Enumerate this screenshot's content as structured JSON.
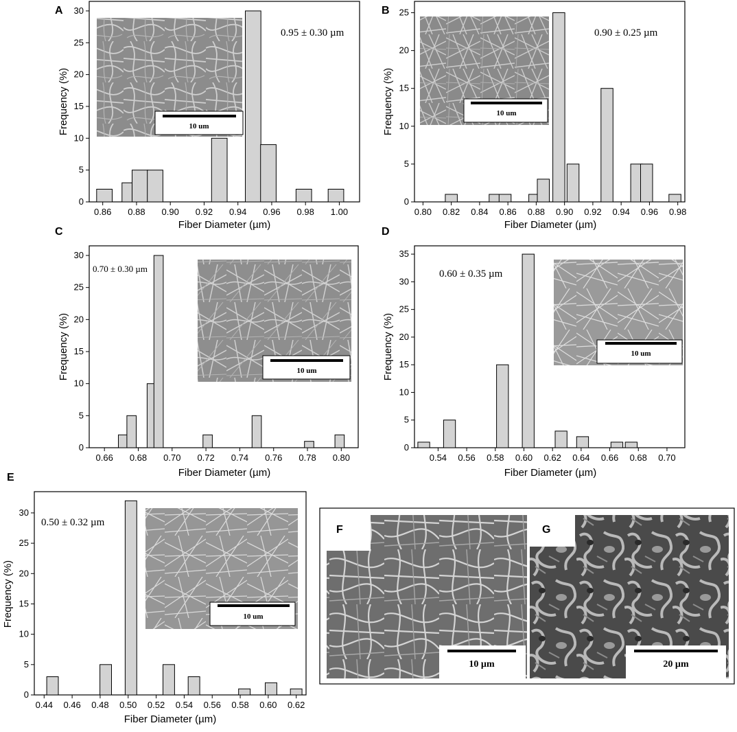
{
  "figure": {
    "panels_extra": {
      "F": {
        "label": "F",
        "scale": "10 µm"
      },
      "G": {
        "label": "G",
        "scale": "20 µm"
      }
    }
  },
  "chart_data": [
    {
      "id": "A",
      "panel_label": "A",
      "type": "bar",
      "xlabel": "Fiber Diameter (µm)",
      "ylabel": "Frequency (%)",
      "annotation": "0.95 ± 0.30 µm",
      "inset_scale": "10 um",
      "x_ticks": [
        0.86,
        0.88,
        0.9,
        0.92,
        0.94,
        0.96,
        0.98,
        1.0
      ],
      "x_tick_labels": [
        "0.86",
        "0.88",
        "0.90",
        "0.92",
        "0.94",
        "0.96",
        "0.98",
        "1.00"
      ],
      "y_ticks": [
        0,
        5,
        10,
        15,
        20,
        25,
        30
      ],
      "xlim": [
        0.852,
        1.012
      ],
      "ylim": [
        0,
        31.5
      ],
      "bin_width": 0.0092,
      "x": [
        0.861,
        0.876,
        0.882,
        0.891,
        0.929,
        0.949,
        0.958,
        0.979,
        0.998
      ],
      "values": [
        2,
        3,
        5,
        5,
        10,
        30,
        9,
        2,
        2
      ],
      "bar_color": "#d3d3d3"
    },
    {
      "id": "B",
      "panel_label": "B",
      "type": "bar",
      "xlabel": "Fiber Diameter (µm)",
      "ylabel": "Frequency (%)",
      "annotation": "0.90 ± 0.25 µm",
      "inset_scale": "10 um",
      "x_ticks": [
        0.8,
        0.82,
        0.84,
        0.86,
        0.88,
        0.9,
        0.92,
        0.94,
        0.96,
        0.98
      ],
      "x_tick_labels": [
        "0.80",
        "0.82",
        "0.84",
        "0.86",
        "0.88",
        "0.90",
        "0.92",
        "0.94",
        "0.96",
        "0.98"
      ],
      "y_ticks": [
        0,
        5,
        10,
        15,
        20,
        25
      ],
      "xlim": [
        0.794,
        0.985
      ],
      "ylim": [
        0,
        26.5
      ],
      "bin_width": 0.0085,
      "x": [
        0.82,
        0.851,
        0.858,
        0.879,
        0.885,
        0.896,
        0.906,
        0.93,
        0.951,
        0.958,
        0.978
      ],
      "values": [
        1,
        1,
        1,
        1,
        3,
        25,
        5,
        15,
        5,
        5,
        1
      ],
      "bar_color": "#d3d3d3"
    },
    {
      "id": "C",
      "panel_label": "C",
      "type": "bar",
      "xlabel": "Fiber Diameter (µm)",
      "ylabel": "Frequency (%)",
      "annotation": "0.70 ± 0.30 µm",
      "inset_scale": "10 um",
      "x_ticks": [
        0.66,
        0.68,
        0.7,
        0.72,
        0.74,
        0.76,
        0.78,
        0.8
      ],
      "x_tick_labels": [
        "0.66",
        "0.68",
        "0.70",
        "0.72",
        "0.74",
        "0.76",
        "0.78",
        "0.80"
      ],
      "y_ticks": [
        0,
        5,
        10,
        15,
        20,
        25,
        30
      ],
      "xlim": [
        0.651,
        0.81
      ],
      "ylim": [
        0,
        31.5
      ],
      "bin_width": 0.0055,
      "x": [
        0.671,
        0.676,
        0.688,
        0.692,
        0.721,
        0.75,
        0.781,
        0.799
      ],
      "values": [
        2,
        5,
        10,
        30,
        2,
        5,
        1,
        2
      ],
      "bar_color": "#d3d3d3"
    },
    {
      "id": "D",
      "panel_label": "D",
      "type": "bar",
      "xlabel": "Fiber Diameter (µm)",
      "ylabel": "Frequency (%)",
      "annotation": "0.60 ± 0.35 µm",
      "inset_scale": "10 um",
      "x_ticks": [
        0.54,
        0.56,
        0.58,
        0.6,
        0.62,
        0.64,
        0.66,
        0.68,
        0.7
      ],
      "x_tick_labels": [
        "0.54",
        "0.56",
        "0.58",
        "0.60",
        "0.62",
        "0.64",
        "0.66",
        "0.68",
        "0.70"
      ],
      "y_ticks": [
        0,
        5,
        10,
        15,
        20,
        25,
        30,
        35
      ],
      "xlim": [
        0.5235,
        0.7125
      ],
      "ylim": [
        0,
        36.5
      ],
      "bin_width": 0.0083,
      "x": [
        0.53,
        0.548,
        0.585,
        0.603,
        0.626,
        0.641,
        0.665,
        0.675
      ],
      "values": [
        1,
        5,
        15,
        35,
        3,
        2,
        1,
        1
      ],
      "bar_color": "#d3d3d3"
    },
    {
      "id": "E",
      "panel_label": "E",
      "type": "bar",
      "xlabel": "Fiber Diameter (µm)",
      "ylabel": "Frequency (%)",
      "annotation": "0.50 ± 0.32 µm",
      "inset_scale": "10 um",
      "x_ticks": [
        0.44,
        0.46,
        0.48,
        0.5,
        0.52,
        0.54,
        0.56,
        0.58,
        0.6,
        0.62
      ],
      "x_tick_labels": [
        "0.44",
        "0.46",
        "0.48",
        "0.50",
        "0.52",
        "0.54",
        "0.56",
        "0.58",
        "0.60",
        "0.62"
      ],
      "y_ticks": [
        0,
        5,
        10,
        15,
        20,
        25,
        30
      ],
      "xlim": [
        0.433,
        0.627
      ],
      "ylim": [
        0,
        33.5
      ],
      "bin_width": 0.0083,
      "x": [
        0.446,
        0.484,
        0.502,
        0.529,
        0.547,
        0.583,
        0.602,
        0.62
      ],
      "values": [
        3,
        5,
        32,
        5,
        3,
        1,
        2,
        1
      ],
      "bar_color": "#d3d3d3"
    }
  ]
}
